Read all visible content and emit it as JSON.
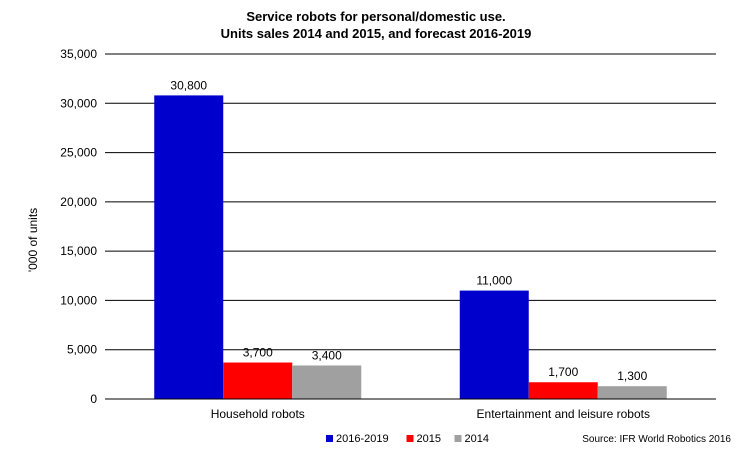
{
  "chart_data": {
    "type": "bar",
    "title_line1": "Service robots for personal/domestic use.",
    "title_line2": "Units sales 2014 and 2015, and forecast 2016-2019",
    "ylabel": "'000 of units",
    "xlabel": "",
    "ylim": [
      0,
      35000
    ],
    "yticks": [
      0,
      5000,
      10000,
      15000,
      20000,
      25000,
      30000,
      35000
    ],
    "ytick_labels": [
      "0",
      "5,000",
      "10,000",
      "15,000",
      "20,000",
      "25,000",
      "30,000",
      "35,000"
    ],
    "grid": true,
    "legend_position": "bottom",
    "categories": [
      "Household robots",
      "Entertainment and leisure robots"
    ],
    "series": [
      {
        "name": "2016-2019",
        "color": "#0000CC",
        "values": [
          30800,
          11000
        ],
        "labels": [
          "30,800",
          "11,000"
        ]
      },
      {
        "name": "2015",
        "color": "#FF0000",
        "values": [
          3700,
          1700
        ],
        "labels": [
          "3,700",
          "1,700"
        ]
      },
      {
        "name": "2014",
        "color": "#A0A0A0",
        "values": [
          3400,
          1300
        ],
        "labels": [
          "3,400",
          "1,300"
        ]
      }
    ],
    "source": "Source: IFR World Robotics 2016"
  }
}
